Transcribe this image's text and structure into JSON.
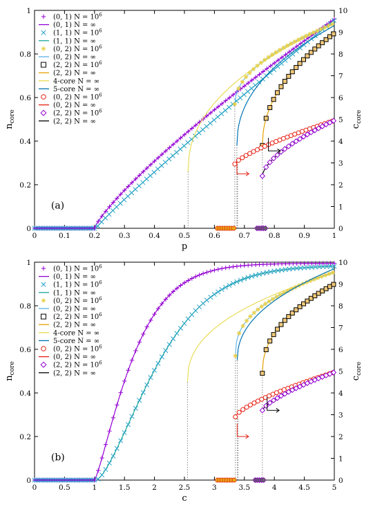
{
  "chart_data": [
    {
      "type": "line",
      "panel_label": "(a)",
      "xlabel": "p",
      "ylabel_main": "n",
      "ylabel_sub": "core",
      "y2label_main": "c",
      "y2label_sub": "core",
      "xlim": [
        0,
        1
      ],
      "ylim": [
        0,
        1
      ],
      "y2lim": [
        0,
        10
      ],
      "x_ticks": [
        "0",
        "0.1",
        "0.2",
        "0.3",
        "0.4",
        "0.5",
        "0.6",
        "0.7",
        "0.8",
        "0.9",
        "1"
      ],
      "y_ticks": [
        "0",
        "0.2",
        "0.4",
        "0.6",
        "0.8",
        "1"
      ],
      "y2_ticks": [
        "0",
        "1",
        "2",
        "3",
        "4",
        "5",
        "6",
        "7",
        "8",
        "9",
        "10"
      ],
      "legend_position": "top-left",
      "legend": [
        {
          "label": "(0, 1) N = 10",
          "sup": "6",
          "marker": "plus",
          "color": "#9400d3"
        },
        {
          "label": "(0, 1) N = ∞",
          "marker": "line",
          "color": "#9400d3"
        },
        {
          "label": "(1, 1) N = 10",
          "sup": "6",
          "marker": "cross",
          "color": "#27a3c9"
        },
        {
          "label": "(1, 1) N = ∞",
          "marker": "line",
          "color": "#1aa59a"
        },
        {
          "label": "(0, 2) N = 10",
          "sup": "6",
          "marker": "star",
          "color": "#e8d04a"
        },
        {
          "label": "(0, 2) N = ∞",
          "marker": "line",
          "color": "#56b4e9"
        },
        {
          "label": "(2, 2) N = 10",
          "sup": "6",
          "marker": "square",
          "color": "#000000"
        },
        {
          "label": "(2, 2) N = ∞",
          "marker": "line",
          "color": "#e69f00"
        },
        {
          "label": "4-core N = ∞",
          "marker": "line",
          "color": "#e8d84a"
        },
        {
          "label": "5-core N = ∞",
          "marker": "line",
          "color": "#0072b2"
        },
        {
          "label": "(0, 2) N = 10",
          "sup": "6",
          "marker": "circle",
          "color": "#e51e10"
        },
        {
          "label": "(0, 2) N = ∞",
          "marker": "line",
          "color": "#e51e10"
        },
        {
          "label": "(2, 2) N = 10",
          "sup": "6",
          "marker": "diamond",
          "color": "#9400d3"
        },
        {
          "label": "(2, 2) N = ∞",
          "marker": "line",
          "color": "#000000"
        }
      ],
      "transitions": {
        "p_01": 0.2,
        "p_11": 0.205,
        "p_02": 0.668,
        "p_22": 0.76,
        "p_4core": 0.512,
        "p_5core": 0.675
      },
      "series": [
        {
          "name": "(0, 1) N = ∞",
          "axis": "left",
          "x": [
            0.2,
            0.3,
            0.4,
            0.5,
            0.6,
            0.7,
            0.8,
            0.9,
            1.0
          ],
          "values": [
            0.0,
            0.18,
            0.33,
            0.46,
            0.57,
            0.67,
            0.77,
            0.86,
            0.96
          ]
        },
        {
          "name": "(1, 1) N = ∞",
          "axis": "left",
          "x": [
            0.205,
            0.3,
            0.4,
            0.5,
            0.6,
            0.7,
            0.8,
            0.9,
            1.0
          ],
          "values": [
            0.0,
            0.13,
            0.28,
            0.41,
            0.53,
            0.64,
            0.75,
            0.85,
            0.955
          ]
        },
        {
          "name": "4-core N = ∞",
          "axis": "left",
          "x": [
            0.512,
            0.55,
            0.6,
            0.7,
            0.8,
            0.9,
            1.0
          ],
          "values": [
            0.26,
            0.4,
            0.5,
            0.64,
            0.75,
            0.85,
            0.94
          ]
        },
        {
          "name": "(0, 2) N = ∞",
          "axis": "left",
          "x": [
            0.668,
            0.7,
            0.75,
            0.8,
            0.9,
            1.0
          ],
          "values": [
            0.57,
            0.66,
            0.73,
            0.79,
            0.87,
            0.94
          ]
        },
        {
          "name": "5-core N = ∞",
          "axis": "left",
          "x": [
            0.675,
            0.7,
            0.75,
            0.8,
            0.9,
            1.0
          ],
          "values": [
            0.38,
            0.5,
            0.6,
            0.67,
            0.78,
            0.93
          ]
        },
        {
          "name": "(2, 2) N = ∞",
          "axis": "left",
          "x": [
            0.76,
            0.8,
            0.85,
            0.9,
            0.95,
            1.0
          ],
          "values": [
            0.38,
            0.55,
            0.66,
            0.75,
            0.82,
            0.895
          ]
        },
        {
          "name": "(0, 2) c_core N = ∞",
          "axis": "right",
          "x": [
            0.668,
            0.7,
            0.8,
            0.9,
            1.0
          ],
          "values": [
            2.95,
            3.3,
            3.95,
            4.45,
            4.95
          ]
        },
        {
          "name": "(2, 2) c_core N = ∞",
          "axis": "right",
          "x": [
            0.76,
            0.8,
            0.9,
            1.0
          ],
          "values": [
            2.4,
            3.0,
            4.1,
            4.95
          ]
        }
      ]
    },
    {
      "type": "line",
      "panel_label": "(b)",
      "xlabel": "c",
      "ylabel_main": "n",
      "ylabel_sub": "core",
      "y2label_main": "c",
      "y2label_sub": "core",
      "xlim": [
        0,
        5
      ],
      "ylim": [
        0,
        1
      ],
      "y2lim": [
        0,
        10
      ],
      "x_ticks": [
        "0",
        "0.5",
        "1",
        "1.5",
        "2",
        "2.5",
        "3",
        "3.5",
        "4",
        "4.5",
        "5"
      ],
      "y_ticks": [
        "0",
        "0.2",
        "0.4",
        "0.6",
        "0.8",
        "1"
      ],
      "y2_ticks": [
        "0",
        "1",
        "2",
        "3",
        "4",
        "5",
        "6",
        "7",
        "8",
        "9",
        "10"
      ],
      "legend_position": "top-left",
      "transitions": {
        "c_01": 1.0,
        "c_11": 1.03,
        "c_02": 3.35,
        "c_22": 3.8,
        "c_4core": 2.55,
        "c_5core": 3.38
      },
      "series": [
        {
          "name": "(0, 1) N = ∞",
          "axis": "left",
          "x": [
            1.0,
            1.25,
            1.5,
            2.0,
            2.5,
            3.0,
            3.5,
            4.0,
            4.5,
            5.0
          ],
          "values": [
            0.0,
            0.42,
            0.6,
            0.78,
            0.87,
            0.92,
            0.95,
            0.97,
            0.98,
            0.99
          ]
        },
        {
          "name": "(1, 1) N = ∞",
          "axis": "left",
          "x": [
            1.03,
            1.25,
            1.5,
            2.0,
            2.5,
            3.0,
            3.5,
            4.0,
            4.5,
            5.0
          ],
          "values": [
            0.0,
            0.2,
            0.37,
            0.62,
            0.76,
            0.85,
            0.9,
            0.94,
            0.96,
            0.975
          ]
        },
        {
          "name": "4-core N = ∞",
          "axis": "left",
          "x": [
            2.55,
            2.7,
            3.0,
            3.5,
            4.0,
            4.5,
            5.0
          ],
          "values": [
            0.45,
            0.6,
            0.7,
            0.79,
            0.86,
            0.91,
            0.95
          ]
        },
        {
          "name": "(0, 2) N = ∞",
          "axis": "left",
          "x": [
            3.35,
            3.5,
            4.0,
            4.5,
            5.0
          ],
          "values": [
            0.57,
            0.7,
            0.82,
            0.9,
            0.95
          ]
        },
        {
          "name": "5-core N = ∞",
          "axis": "left",
          "x": [
            3.38,
            3.5,
            4.0,
            4.5,
            5.0
          ],
          "values": [
            0.55,
            0.66,
            0.8,
            0.9,
            0.97
          ]
        },
        {
          "name": "(2, 2) N = ∞",
          "axis": "left",
          "x": [
            3.8,
            4.0,
            4.5,
            5.0
          ],
          "values": [
            0.49,
            0.64,
            0.8,
            0.9
          ]
        },
        {
          "name": "(0, 2) c_core N = ∞",
          "axis": "right",
          "x": [
            3.35,
            3.5,
            4.0,
            4.5,
            5.0
          ],
          "values": [
            2.9,
            3.2,
            3.9,
            4.5,
            4.95
          ]
        },
        {
          "name": "(2, 2) c_core N = ∞",
          "axis": "right",
          "x": [
            3.8,
            4.0,
            4.5,
            5.0
          ],
          "values": [
            3.2,
            3.6,
            4.4,
            4.95
          ]
        }
      ]
    }
  ]
}
